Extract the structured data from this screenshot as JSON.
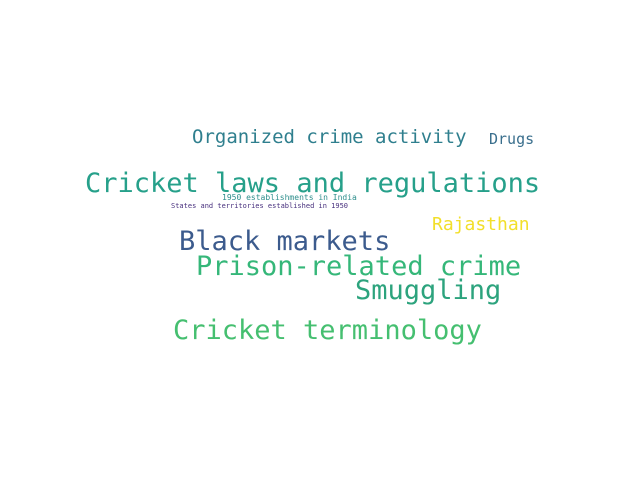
{
  "word_cloud": {
    "words": [
      {
        "text": "Organized crime activity",
        "color": "#2f7f8e"
      },
      {
        "text": "Drugs",
        "color": "#3a6f8d"
      },
      {
        "text": "Cricket laws and regulations",
        "color": "#26a08a"
      },
      {
        "text": "1950 establishments in India",
        "color": "#2e8e8c"
      },
      {
        "text": "States and territories established in 1950",
        "color": "#472f7d"
      },
      {
        "text": "Rajasthan",
        "color": "#f2df2a"
      },
      {
        "text": "Black markets",
        "color": "#3c5b8d"
      },
      {
        "text": "Prison-related crime",
        "color": "#35b779"
      },
      {
        "text": "Smuggling",
        "color": "#2ca37d"
      },
      {
        "text": "Cricket terminology",
        "color": "#45bf70"
      }
    ]
  }
}
